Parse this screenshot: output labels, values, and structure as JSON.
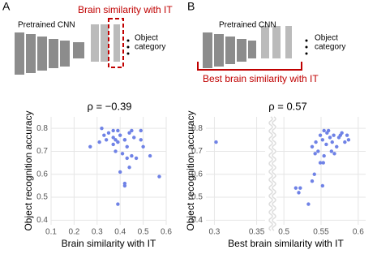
{
  "panels": [
    {
      "label": "A",
      "network": "Pretrained CNN",
      "highlight": "Brain similarity with IT",
      "output": [
        "Object",
        "category"
      ]
    },
    {
      "label": "B",
      "network": "Pretrained CNN",
      "highlight": "Best brain similarity with IT",
      "output": [
        "Object",
        "category"
      ]
    }
  ],
  "chart_data": [
    {
      "type": "scatter",
      "title": "ρ = −0.39",
      "xlabel": "Brain similarity with IT",
      "ylabel": "Object recognition accuracy",
      "color": "#6f82e6",
      "grid": true,
      "xlim": [
        0.1,
        0.6
      ],
      "xticks": [
        0.1,
        0.2,
        0.3,
        0.4,
        0.5,
        0.6
      ],
      "ylim": [
        0.38,
        0.85
      ],
      "yticks": [
        0.4,
        0.5,
        0.6,
        0.7,
        0.8
      ],
      "x": [
        0.31,
        0.27,
        0.32,
        0.37,
        0.39,
        0.4,
        0.42,
        0.43,
        0.45,
        0.43,
        0.44,
        0.45,
        0.49,
        0.49,
        0.5,
        0.53,
        0.57,
        0.39,
        0.4,
        0.42,
        0.42,
        0.44,
        0.47,
        0.37,
        0.34,
        0.33,
        0.38,
        0.41,
        0.37,
        0.39,
        0.35,
        0.42,
        0.46,
        0.38
      ],
      "values": [
        0.74,
        0.72,
        0.8,
        0.79,
        0.79,
        0.77,
        0.75,
        0.72,
        0.68,
        0.67,
        0.78,
        0.79,
        0.79,
        0.75,
        0.72,
        0.68,
        0.59,
        0.47,
        0.61,
        0.56,
        0.55,
        0.63,
        0.67,
        0.76,
        0.75,
        0.77,
        0.7,
        0.69,
        0.73,
        0.74,
        0.78,
        0.75,
        0.76,
        0.75
      ]
    },
    {
      "type": "scatter",
      "title": "ρ = 0.57",
      "xlabel": "Best brain similarity with IT",
      "ylabel": "Object recognition accuracy",
      "color": "#6f82e6",
      "grid": true,
      "xsegments": [
        {
          "xlim": [
            0.29,
            0.36
          ],
          "xticks": [
            0.3,
            0.35
          ]
        },
        {
          "xlim": [
            0.49,
            0.61
          ],
          "xticks": [
            0.5,
            0.55,
            0.6
          ]
        }
      ],
      "ylim": [
        0.38,
        0.85
      ],
      "yticks": [
        0.4,
        0.5,
        0.6,
        0.7,
        0.8
      ],
      "x": [
        0.302,
        0.567,
        0.56,
        0.576,
        0.587,
        0.582,
        0.552,
        0.543,
        0.538,
        0.546,
        0.554,
        0.549,
        0.541,
        0.538,
        0.522,
        0.516,
        0.52,
        0.533,
        0.552,
        0.565,
        0.571,
        0.557,
        0.562,
        0.574,
        0.549,
        0.558,
        0.564,
        0.568,
        0.553,
        0.542,
        0.578,
        0.585,
        0.554
      ],
      "values": [
        0.74,
        0.77,
        0.79,
        0.77,
        0.75,
        0.74,
        0.75,
        0.74,
        0.72,
        0.7,
        0.68,
        0.65,
        0.6,
        0.57,
        0.54,
        0.54,
        0.52,
        0.47,
        0.55,
        0.74,
        0.72,
        0.73,
        0.76,
        0.76,
        0.77,
        0.78,
        0.7,
        0.69,
        0.65,
        0.69,
        0.78,
        0.77,
        0.79
      ]
    }
  ]
}
